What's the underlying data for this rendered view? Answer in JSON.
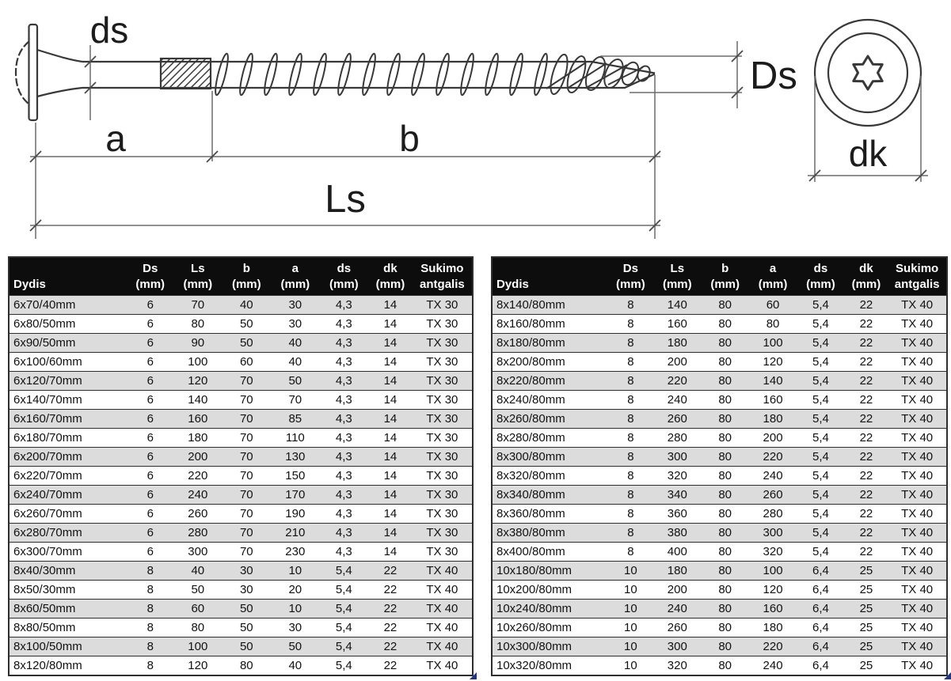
{
  "diagram": {
    "labels": {
      "ds": "ds",
      "a": "a",
      "b": "b",
      "ls": "Ls",
      "Ds": "Ds",
      "dk": "dk"
    }
  },
  "tables": {
    "headers": [
      {
        "l1": "",
        "l2": "Dydis"
      },
      {
        "l1": "Ds",
        "l2": "(mm)"
      },
      {
        "l1": "Ls",
        "l2": "(mm)"
      },
      {
        "l1": "b",
        "l2": "(mm)"
      },
      {
        "l1": "a",
        "l2": "(mm)"
      },
      {
        "l1": "ds",
        "l2": "(mm)"
      },
      {
        "l1": "dk",
        "l2": "(mm)"
      },
      {
        "l1": "Sukimo",
        "l2": "antgalis"
      }
    ],
    "left": {
      "rows": [
        [
          "6x70/40mm",
          "6",
          "70",
          "40",
          "30",
          "4,3",
          "14",
          "TX 30"
        ],
        [
          "6x80/50mm",
          "6",
          "80",
          "50",
          "30",
          "4,3",
          "14",
          "TX 30"
        ],
        [
          "6x90/50mm",
          "6",
          "90",
          "50",
          "40",
          "4,3",
          "14",
          "TX 30"
        ],
        [
          "6x100/60mm",
          "6",
          "100",
          "60",
          "40",
          "4,3",
          "14",
          "TX 30"
        ],
        [
          "6x120/70mm",
          "6",
          "120",
          "70",
          "50",
          "4,3",
          "14",
          "TX 30"
        ],
        [
          "6x140/70mm",
          "6",
          "140",
          "70",
          "70",
          "4,3",
          "14",
          "TX 30"
        ],
        [
          "6x160/70mm",
          "6",
          "160",
          "70",
          "85",
          "4,3",
          "14",
          "TX 30"
        ],
        [
          "6x180/70mm",
          "6",
          "180",
          "70",
          "110",
          "4,3",
          "14",
          "TX 30"
        ],
        [
          "6x200/70mm",
          "6",
          "200",
          "70",
          "130",
          "4,3",
          "14",
          "TX 30"
        ],
        [
          "6x220/70mm",
          "6",
          "220",
          "70",
          "150",
          "4,3",
          "14",
          "TX 30"
        ],
        [
          "6x240/70mm",
          "6",
          "240",
          "70",
          "170",
          "4,3",
          "14",
          "TX 30"
        ],
        [
          "6x260/70mm",
          "6",
          "260",
          "70",
          "190",
          "4,3",
          "14",
          "TX 30"
        ],
        [
          "6x280/70mm",
          "6",
          "280",
          "70",
          "210",
          "4,3",
          "14",
          "TX 30"
        ],
        [
          "6x300/70mm",
          "6",
          "300",
          "70",
          "230",
          "4,3",
          "14",
          "TX 30"
        ],
        [
          "8x40/30mm",
          "8",
          "40",
          "30",
          "10",
          "5,4",
          "22",
          "TX 40"
        ],
        [
          "8x50/30mm",
          "8",
          "50",
          "30",
          "20",
          "5,4",
          "22",
          "TX 40"
        ],
        [
          "8x60/50mm",
          "8",
          "60",
          "50",
          "10",
          "5,4",
          "22",
          "TX 40"
        ],
        [
          "8x80/50mm",
          "8",
          "80",
          "50",
          "30",
          "5,4",
          "22",
          "TX 40"
        ],
        [
          "8x100/50mm",
          "8",
          "100",
          "50",
          "50",
          "5,4",
          "22",
          "TX 40"
        ],
        [
          "8x120/80mm",
          "8",
          "120",
          "80",
          "40",
          "5,4",
          "22",
          "TX 40"
        ]
      ]
    },
    "right": {
      "rows": [
        [
          "8x140/80mm",
          "8",
          "140",
          "80",
          "60",
          "5,4",
          "22",
          "TX 40"
        ],
        [
          "8x160/80mm",
          "8",
          "160",
          "80",
          "80",
          "5,4",
          "22",
          "TX 40"
        ],
        [
          "8x180/80mm",
          "8",
          "180",
          "80",
          "100",
          "5,4",
          "22",
          "TX 40"
        ],
        [
          "8x200/80mm",
          "8",
          "200",
          "80",
          "120",
          "5,4",
          "22",
          "TX 40"
        ],
        [
          "8x220/80mm",
          "8",
          "220",
          "80",
          "140",
          "5,4",
          "22",
          "TX 40"
        ],
        [
          "8x240/80mm",
          "8",
          "240",
          "80",
          "160",
          "5,4",
          "22",
          "TX 40"
        ],
        [
          "8x260/80mm",
          "8",
          "260",
          "80",
          "180",
          "5,4",
          "22",
          "TX 40"
        ],
        [
          "8x280/80mm",
          "8",
          "280",
          "80",
          "200",
          "5,4",
          "22",
          "TX 40"
        ],
        [
          "8x300/80mm",
          "8",
          "300",
          "80",
          "220",
          "5,4",
          "22",
          "TX 40"
        ],
        [
          "8x320/80mm",
          "8",
          "320",
          "80",
          "240",
          "5,4",
          "22",
          "TX 40"
        ],
        [
          "8x340/80mm",
          "8",
          "340",
          "80",
          "260",
          "5,4",
          "22",
          "TX 40"
        ],
        [
          "8x360/80mm",
          "8",
          "360",
          "80",
          "280",
          "5,4",
          "22",
          "TX 40"
        ],
        [
          "8x380/80mm",
          "8",
          "380",
          "80",
          "300",
          "5,4",
          "22",
          "TX 40"
        ],
        [
          "8x400/80mm",
          "8",
          "400",
          "80",
          "320",
          "5,4",
          "22",
          "TX 40"
        ],
        [
          "10x180/80mm",
          "10",
          "180",
          "80",
          "100",
          "6,4",
          "25",
          "TX 40"
        ],
        [
          "10x200/80mm",
          "10",
          "200",
          "80",
          "120",
          "6,4",
          "25",
          "TX 40"
        ],
        [
          "10x240/80mm",
          "10",
          "240",
          "80",
          "160",
          "6,4",
          "25",
          "TX 40"
        ],
        [
          "10x260/80mm",
          "10",
          "260",
          "80",
          "180",
          "6,4",
          "25",
          "TX 40"
        ],
        [
          "10x300/80mm",
          "10",
          "300",
          "80",
          "220",
          "6,4",
          "25",
          "TX 40"
        ],
        [
          "10x320/80mm",
          "10",
          "320",
          "80",
          "240",
          "6,4",
          "25",
          "TX 40"
        ]
      ]
    }
  },
  "colors": {
    "row_stripe": "#dcdcdc",
    "header_bg": "#0d0d0d",
    "header_text": "#ffffff",
    "border": "#2e2e2e",
    "fill_handle": "#25357e"
  }
}
